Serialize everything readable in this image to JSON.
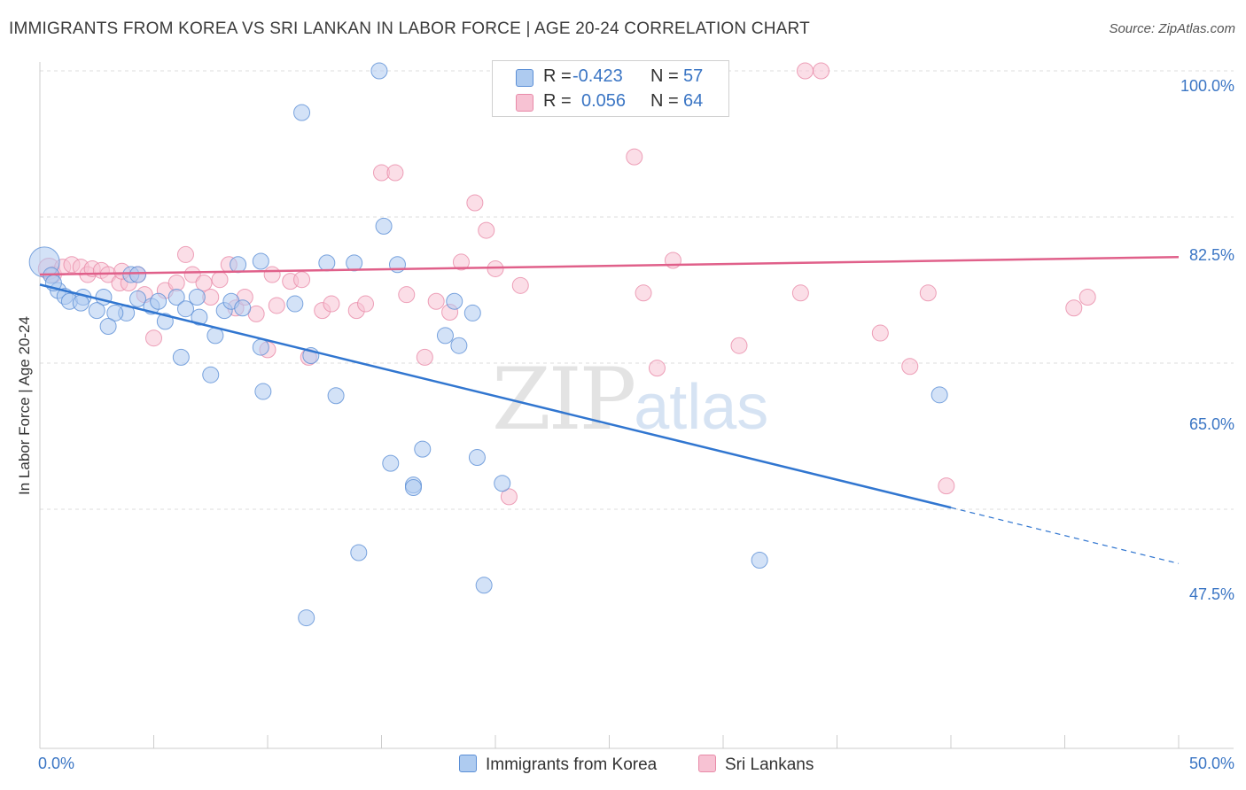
{
  "header": {
    "title": "IMMIGRANTS FROM KOREA VS SRI LANKAN IN LABOR FORCE | AGE 20-24 CORRELATION CHART",
    "source": "Source: ZipAtlas.com"
  },
  "watermark": {
    "zip": "ZIP",
    "atlas": "atlas"
  },
  "legend": {
    "korea": {
      "r_label": "R =",
      "r_value": "-0.423",
      "n_label": "N =",
      "n_value": "57"
    },
    "sri": {
      "r_label": "R =",
      "r_value": "0.056",
      "n_label": "N =",
      "n_value": "64"
    }
  },
  "colors": {
    "korea_fill": "#aecbf0",
    "korea_stroke": "#5b8fd6",
    "korea_line": "#3176d0",
    "sri_fill": "#f7c2d3",
    "sri_stroke": "#e88aa8",
    "sri_line": "#e0608a",
    "tick_text": "#3a75c4",
    "grid": "#dddddd"
  },
  "chart_data": {
    "type": "scatter",
    "title": "IMMIGRANTS FROM KOREA VS SRI LANKAN IN LABOR FORCE | AGE 20-24 CORRELATION CHART",
    "xlabel": "",
    "ylabel": "In Labor Force | Age 20-24",
    "x_tick_labels": [
      "0.0%",
      "50.0%"
    ],
    "y_tick_labels": [
      "100.0%",
      "82.5%",
      "65.0%",
      "47.5%"
    ],
    "y_ticks": [
      100.0,
      82.5,
      65.0,
      47.5
    ],
    "xlim": [
      0,
      50
    ],
    "ylim": [
      31.5,
      103.0
    ],
    "grid": true,
    "legend_position": "top-center",
    "series": [
      {
        "name": "Immigrants from Korea",
        "points": [
          [
            0.2,
            77.1
          ],
          [
            0.5,
            75.5
          ],
          [
            0.8,
            73.7
          ],
          [
            1.1,
            73.0
          ],
          [
            1.3,
            72.4
          ],
          [
            1.9,
            72.9
          ],
          [
            2.8,
            72.9
          ],
          [
            1.8,
            72.2
          ],
          [
            2.5,
            71.3
          ],
          [
            3.8,
            71.0
          ],
          [
            3.3,
            71.0
          ],
          [
            3.0,
            69.4
          ],
          [
            4.0,
            75.6
          ],
          [
            4.3,
            72.7
          ],
          [
            4.9,
            71.8
          ],
          [
            5.2,
            72.4
          ],
          [
            5.5,
            70.0
          ],
          [
            6.0,
            72.9
          ],
          [
            6.4,
            71.5
          ],
          [
            6.2,
            65.7
          ],
          [
            7.0,
            70.5
          ],
          [
            6.9,
            72.9
          ],
          [
            7.7,
            68.3
          ],
          [
            7.5,
            63.6
          ],
          [
            8.1,
            71.3
          ],
          [
            8.7,
            76.8
          ],
          [
            8.4,
            72.4
          ],
          [
            8.9,
            71.6
          ],
          [
            9.7,
            66.9
          ],
          [
            9.8,
            61.6
          ],
          [
            11.2,
            72.1
          ],
          [
            11.9,
            65.9
          ],
          [
            12.6,
            77.0
          ],
          [
            13.0,
            61.1
          ],
          [
            13.8,
            77.0
          ],
          [
            15.1,
            81.4
          ],
          [
            15.7,
            76.8
          ],
          [
            14.9,
            100.0
          ],
          [
            11.5,
            95.0
          ],
          [
            15.4,
            53.0
          ],
          [
            16.4,
            50.4
          ],
          [
            16.4,
            50.1
          ],
          [
            16.8,
            54.7
          ],
          [
            17.8,
            68.3
          ],
          [
            18.2,
            72.4
          ],
          [
            18.4,
            67.1
          ],
          [
            19.0,
            71.0
          ],
          [
            19.2,
            53.7
          ],
          [
            19.5,
            38.4
          ],
          [
            20.3,
            50.6
          ],
          [
            14.0,
            42.3
          ],
          [
            11.7,
            34.5
          ],
          [
            31.6,
            41.4
          ],
          [
            39.5,
            61.2
          ],
          [
            9.7,
            77.2
          ],
          [
            4.3,
            75.6
          ],
          [
            0.6,
            74.6
          ]
        ],
        "sizes": [
          22,
          10,
          10
        ]
      },
      {
        "name": "Sri Lankans",
        "points": [
          [
            0.4,
            76.3
          ],
          [
            0.6,
            75.6
          ],
          [
            1.0,
            76.5
          ],
          [
            1.4,
            76.8
          ],
          [
            1.8,
            76.5
          ],
          [
            2.1,
            75.6
          ],
          [
            2.3,
            76.3
          ],
          [
            2.7,
            76.1
          ],
          [
            3.0,
            75.6
          ],
          [
            3.5,
            74.6
          ],
          [
            3.9,
            74.6
          ],
          [
            4.3,
            75.6
          ],
          [
            4.6,
            73.2
          ],
          [
            5.0,
            68.0
          ],
          [
            5.5,
            73.7
          ],
          [
            6.0,
            74.6
          ],
          [
            6.4,
            78.0
          ],
          [
            6.7,
            75.6
          ],
          [
            7.2,
            74.6
          ],
          [
            7.5,
            72.9
          ],
          [
            7.9,
            75.0
          ],
          [
            8.3,
            76.8
          ],
          [
            8.6,
            71.6
          ],
          [
            9.0,
            72.9
          ],
          [
            9.5,
            70.9
          ],
          [
            10.0,
            66.6
          ],
          [
            10.4,
            71.9
          ],
          [
            11.0,
            74.8
          ],
          [
            11.5,
            75.0
          ],
          [
            11.8,
            65.7
          ],
          [
            12.4,
            71.3
          ],
          [
            12.8,
            72.1
          ],
          [
            13.9,
            71.3
          ],
          [
            14.3,
            72.1
          ],
          [
            15.0,
            87.8
          ],
          [
            15.6,
            87.8
          ],
          [
            16.1,
            73.2
          ],
          [
            16.9,
            65.7
          ],
          [
            17.4,
            72.4
          ],
          [
            18.0,
            71.1
          ],
          [
            19.1,
            84.2
          ],
          [
            19.6,
            80.9
          ],
          [
            20.0,
            76.3
          ],
          [
            20.6,
            49.0
          ],
          [
            21.1,
            74.3
          ],
          [
            22.0,
            100.0
          ],
          [
            23.2,
            100.0
          ],
          [
            26.1,
            89.7
          ],
          [
            26.5,
            73.4
          ],
          [
            27.1,
            64.4
          ],
          [
            27.8,
            77.3
          ],
          [
            30.7,
            67.1
          ],
          [
            33.4,
            73.4
          ],
          [
            33.6,
            100.0
          ],
          [
            34.3,
            100.0
          ],
          [
            36.9,
            68.6
          ],
          [
            38.2,
            64.6
          ],
          [
            39.0,
            73.4
          ],
          [
            39.8,
            50.3
          ],
          [
            45.4,
            71.6
          ],
          [
            46.0,
            72.9
          ],
          [
            10.2,
            75.6
          ],
          [
            18.5,
            77.1
          ],
          [
            3.6,
            76.0
          ]
        ],
        "sizes": [
          14,
          10
        ]
      }
    ],
    "trend_lines": [
      {
        "name": "Immigrants from Korea",
        "x_solid": [
          0,
          40
        ],
        "y_solid": [
          74.4,
          47.7
        ],
        "x_dashed": [
          40,
          50
        ],
        "y_dashed": [
          47.7,
          41.0
        ]
      },
      {
        "name": "Sri Lankans",
        "x": [
          0,
          50
        ],
        "y": [
          75.6,
          77.7
        ]
      }
    ]
  },
  "axes": {
    "x_left_label": "0.0%",
    "x_right_label": "50.0%",
    "y_axis_label": "In Labor Force | Age 20-24"
  },
  "bottom_legend": {
    "korea_label": "Immigrants from Korea",
    "sri_label": "Sri Lankans"
  }
}
